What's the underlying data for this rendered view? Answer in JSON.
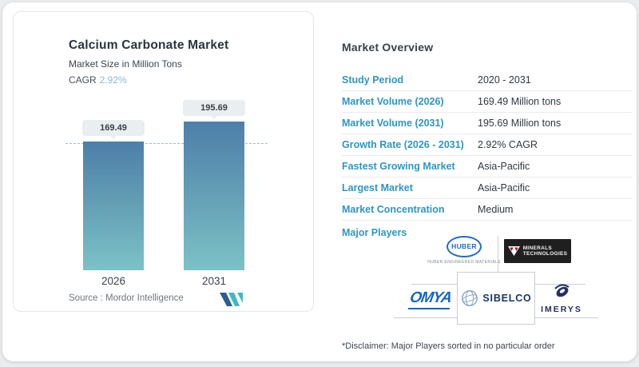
{
  "chart_data": {
    "type": "bar",
    "title": "Calcium Carbonate Market",
    "subtitle": "Market Size in Million Tons",
    "categories": [
      "2026",
      "2031"
    ],
    "values": [
      169.49,
      195.69
    ],
    "bar_labels": [
      "169.49",
      "195.69"
    ],
    "cagr": "2.92%",
    "ylabel": "Market Size (Million Tons)",
    "reference_line": 169.49,
    "legend_position": "none",
    "grid": "off",
    "source": "Mordor Intelligence"
  },
  "chart_panel": {
    "title": "Calcium Carbonate Market",
    "subtitle": "Market Size in Million Tons",
    "cagr_label": "CAGR",
    "cagr_value": "2.92%",
    "bars": [
      {
        "year": "2026",
        "label": "169.49"
      },
      {
        "year": "2031",
        "label": "195.69"
      }
    ],
    "source_text": "Source :  Mordor Intelligence"
  },
  "overview": {
    "title": "Market Overview",
    "rows": [
      {
        "label": "Study Period",
        "value": "2020 - 2031"
      },
      {
        "label": "Market Volume (2026)",
        "value": "169.49 Million tons"
      },
      {
        "label": "Market Volume (2031)",
        "value": "195.69 Million tons"
      },
      {
        "label": "Growth Rate (2026 - 2031)",
        "value": "2.92% CAGR"
      },
      {
        "label": "Fastest Growing Market",
        "value": "Asia-Pacific"
      },
      {
        "label": "Largest Market",
        "value": "Asia-Pacific"
      },
      {
        "label": "Market Concentration",
        "value": "Medium"
      }
    ],
    "major_players_label": "Major Players",
    "disclaimer": "*Disclaimer: Major Players sorted in no particular order"
  },
  "players": {
    "huber_name": "HUBER",
    "huber_caption": "HUBER ENGINEERED MATERIALS",
    "mineral_tech_line1": "MINERALS",
    "mineral_tech_line2": "TECHNOLOGIES",
    "omya_name": "OMYA",
    "sibelco_name": "SIBELCO",
    "imerys_name": "IMERYS"
  },
  "colors": {
    "accent_blue": "#2d96c6",
    "cagr_blue": "#8db8d8",
    "bar_gradient_top": "#4d7fa9",
    "bar_gradient_bottom": "#7cc2c6",
    "pill_background": "#e9eef1",
    "mordor_navy": "#2b5f8e",
    "mordor_teal": "#41b7c4"
  }
}
